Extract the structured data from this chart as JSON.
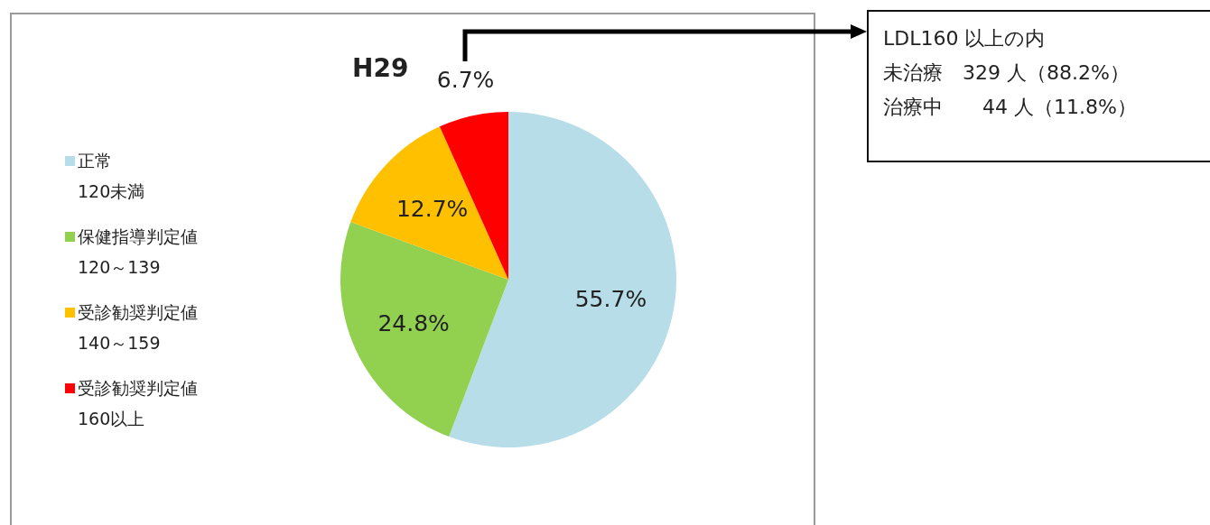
{
  "chart_data": {
    "type": "pie",
    "title": "H29",
    "categories": [
      "正常\n120未満",
      "保健指導判定値\n120～139",
      "受診勧奨判定値\n140～159",
      "受診勧奨判定値\n160以上"
    ],
    "values": [
      55.7,
      24.8,
      12.7,
      6.7
    ],
    "colors": [
      "#b7dde8",
      "#92d050",
      "#ffc000",
      "#ff0000"
    ],
    "value_labels": [
      "55.7%",
      "24.8%",
      "12.7%",
      "6.7%"
    ],
    "legend": "left",
    "annotations": [
      "LDL160 以上の内",
      "未治療　329 人（88.2%）",
      "治療中　　44 人（11.8%）"
    ]
  }
}
